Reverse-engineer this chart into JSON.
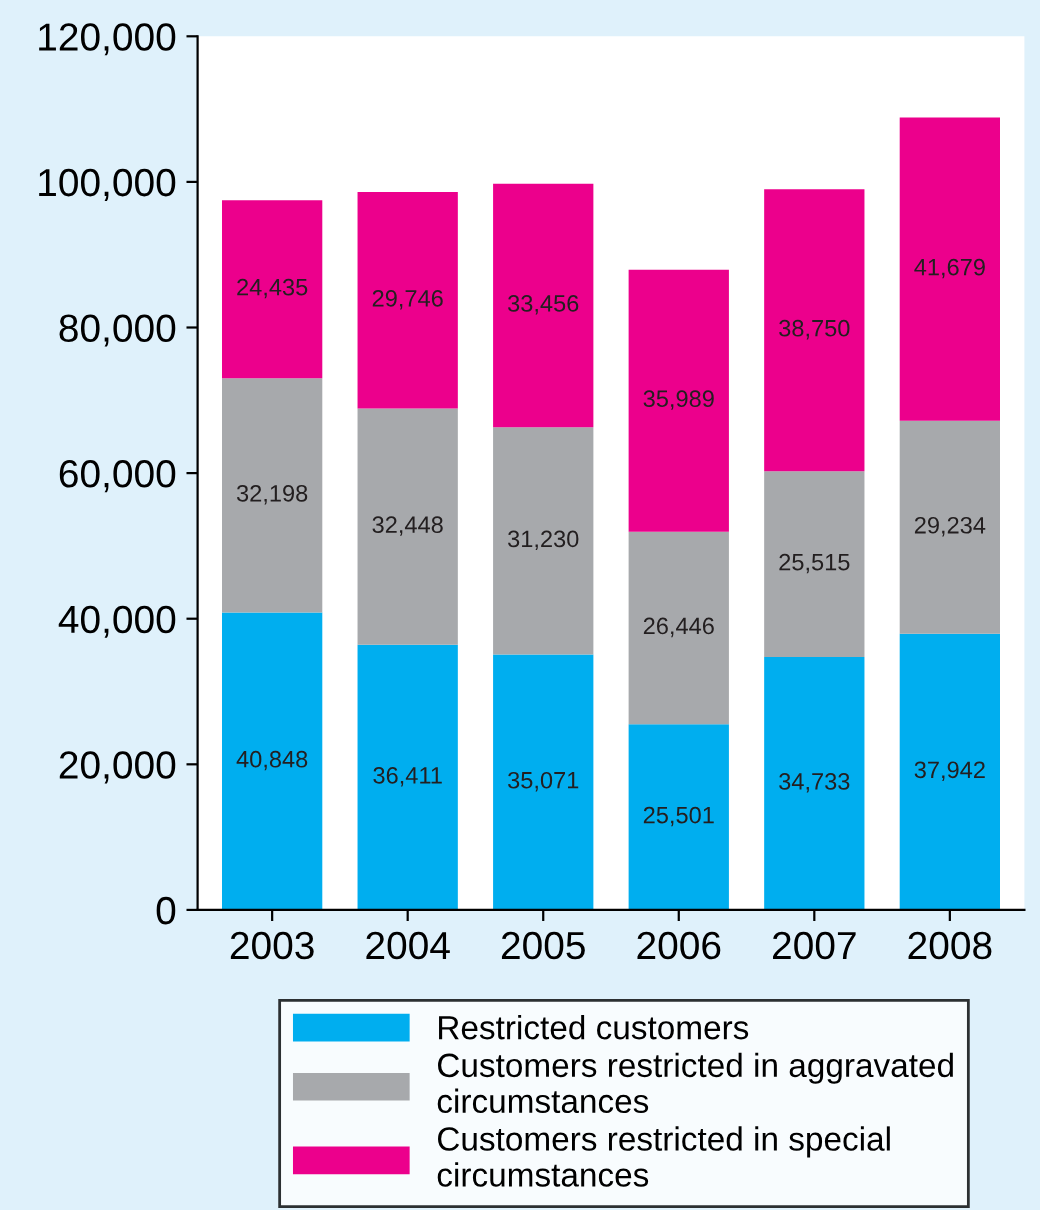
{
  "chart_data": {
    "type": "bar",
    "stacked": true,
    "grid": false,
    "legend": "bottom",
    "categories": [
      "2003",
      "2004",
      "2005",
      "2006",
      "2007",
      "2008"
    ],
    "ylim": [
      0,
      120000
    ],
    "yticks": [
      {
        "value": 0,
        "label": "0"
      },
      {
        "value": 20000,
        "label": "20,000"
      },
      {
        "value": 40000,
        "label": "40,000"
      },
      {
        "value": 60000,
        "label": "60,000"
      },
      {
        "value": 80000,
        "label": "80,000"
      },
      {
        "value": 100000,
        "label": "100,000"
      },
      {
        "value": 120000,
        "label": "120,000"
      }
    ],
    "series": [
      {
        "name": "Restricted customers",
        "color": "#00aeef",
        "values": [
          40848,
          36411,
          35071,
          25501,
          34733,
          37942
        ],
        "value_labels": [
          "40,848",
          "36,411",
          "35,071",
          "25,501",
          "34,733",
          "37,942"
        ]
      },
      {
        "name": "Customers restricted in aggravated\ncircumstances",
        "color": "#a7a9ac",
        "values": [
          32198,
          32448,
          31230,
          26446,
          25515,
          29234
        ],
        "value_labels": [
          "32,198",
          "32,448",
          "31,230",
          "26,446",
          "25,515",
          "29,234"
        ]
      },
      {
        "name": "Customers restricted in special\ncircumstances",
        "color": "#ec008c",
        "values": [
          24435,
          29746,
          33456,
          35989,
          38750,
          41679
        ],
        "value_labels": [
          "24,435",
          "29,746",
          "33,456",
          "35,989",
          "38,750",
          "41,679"
        ]
      }
    ]
  }
}
